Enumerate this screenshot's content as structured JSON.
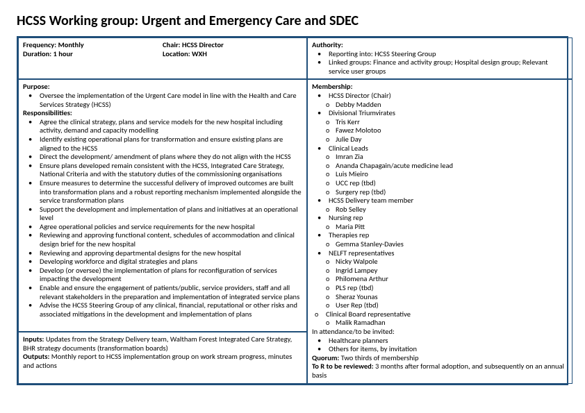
{
  "title": "HCSS Working group: Urgent and Emergency Care and SDEC",
  "meta": {
    "frequency_label": "Frequency:",
    "frequency_value": "Monthly",
    "duration_label": "Duration:",
    "duration_value": "1 hour",
    "chair_label": "Chair:",
    "chair_value": "HCSS Director",
    "location_label": "Location:",
    "location_value": "WXH"
  },
  "authority": {
    "label": "Authority:",
    "items": [
      "Reporting into: HCSS Steering Group",
      "Linked groups: Finance and activity group; Hospital design group; Relevant service user groups"
    ]
  },
  "purpose": {
    "label": "Purpose:",
    "items": [
      "Oversee the implementation of the Urgent Care model in line with the Health and Care Services Strategy (HCSS)"
    ]
  },
  "responsibilities": {
    "label": "Responsibilities:",
    "items": [
      "Agree the clinical strategy, plans and service models for the new hospital including activity, demand and capacity modelling",
      "Identify existing operational plans for transformation and ensure existing plans are aligned to the HCSS",
      "Direct the development/ amendment of plans where they do not align with the HCSS",
      "Ensure plans developed remain consistent with the HCSS, Integrated Care Strategy, National Criteria and with the statutory duties of the commissioning organisations",
      "Ensure measures to determine the successful delivery of improved outcomes are built into transformation plans and a robust reporting mechanism implemented alongside the service transformation plans",
      "Support the development and implementation of plans and initiatives at an operational level",
      "Agree operational policies and service requirements for the new hospital",
      "Reviewing and approving functional content, schedules of accommodation and clinical design brief for the new hospital",
      "Reviewing and approving departmental designs for the new hospital",
      "Developing workforce and digital strategies and plans",
      "Develop (or oversee) the implementation of plans for reconfiguration of services impacting the development",
      "Enable and ensure the engagement of patients/public, service providers, staff and all relevant stakeholders in the preparation and implementation of integrated service plans",
      "Advise the HCSS Steering Group of any clinical, financial, reputational or other risks and associated mitigations in the development and implementation of plans"
    ]
  },
  "membership": {
    "label": "Membership:",
    "groups": [
      {
        "name": "HCSS Director (Chair)",
        "people": [
          "Debby Madden"
        ]
      },
      {
        "name": "Divisional Triumvirates",
        "people": [
          "Tris Kerr",
          "Fawez Molotoo",
          "Julie Day"
        ]
      },
      {
        "name": "Clinical Leads",
        "people": [
          "Imran Zia",
          "Ananda Chapagain/acute medicine lead",
          "Luis Mieiro",
          "UCC rep (tbd)",
          "Surgery rep (tbd)"
        ]
      },
      {
        "name": "HCSS Delivery team member",
        "people": [
          "Rob Selley"
        ]
      },
      {
        "name": "Nursing rep",
        "people": [
          "Maria Pitt"
        ]
      },
      {
        "name": "Therapies rep",
        "people": [
          "Gemma Stanley-Davies"
        ]
      },
      {
        "name": "NELFT representatives",
        "people": [
          "Nicky Walpole",
          "Ingrid Lampey",
          "Philomena Arthur",
          "PLS rep (tbd)",
          "Sheraz Younas",
          "User Rep (tbd)"
        ]
      }
    ],
    "extra_group": {
      "name": "Clinical Board representative",
      "people": [
        "Malik Ramadhan"
      ]
    },
    "invite_label": "In attendance/to be invited:",
    "invite_items": [
      "Healthcare planners",
      "Others for items, by invitation"
    ],
    "quorum_label": "Quorum:",
    "quorum_value": "Two thirds of membership",
    "tor_label": "To R to be reviewed:",
    "tor_value": "3 months after formal adoption, and subsequently on an annual basis"
  },
  "io": {
    "inputs_label": "Inputs:",
    "inputs_value": "Updates from the Strategy Delivery team, Waltham Forest Integrated Care Strategy, BHR strategy documents (transformation boards)",
    "outputs_label": "Outputs:",
    "outputs_value": "Monthly report to HCSS implementation group on work stream progress, minutes and actions"
  },
  "colors": {
    "border": "#1f4e79",
    "accent": "#d9e6d9"
  }
}
